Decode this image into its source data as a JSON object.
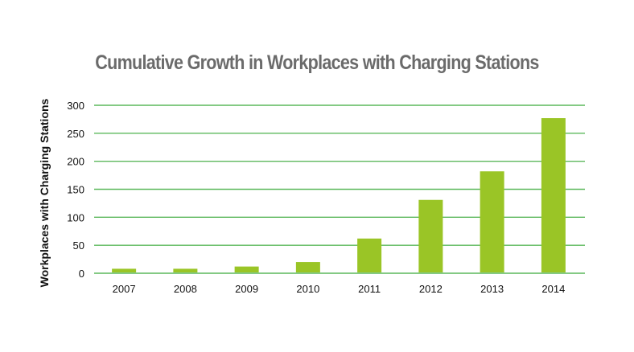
{
  "chart_data": {
    "type": "bar",
    "title": "Cumulative Growth in Workplaces with Charging Stations",
    "xlabel": "",
    "ylabel": "Workplaces with Charging Stations",
    "categories": [
      "2007",
      "2008",
      "2009",
      "2010",
      "2011",
      "2012",
      "2013",
      "2014"
    ],
    "values": [
      8,
      8,
      12,
      20,
      62,
      131,
      182,
      277
    ],
    "ylim": [
      0,
      300
    ],
    "yticks": [
      0,
      50,
      100,
      150,
      200,
      250,
      300
    ],
    "grid": true,
    "legend": "none",
    "colors": {
      "bar": "#9ac526",
      "grid": "#5cb85c",
      "title": "#6b6b6b"
    }
  }
}
